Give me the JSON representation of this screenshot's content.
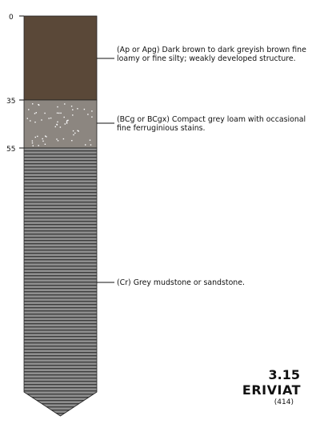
{
  "depth_labels": {
    "top": "0",
    "ap_bottom": "35",
    "bcg_bottom": "55"
  },
  "horizons": {
    "ap": {
      "description": "(Ap or Apg) Dark brown to dark greyish brown fine loamy or fine silty; weakly developed structure.",
      "color": "#5a4838"
    },
    "bcg": {
      "description": "(BCg or BCgx) Compact grey loam with occasional fine ferruginious stains.",
      "color": "#8c8680"
    },
    "cr": {
      "description": "(Cr) Grey mudstone or sandstone.",
      "color": "#8e8e8e",
      "stripe_color": "#3a3a3a"
    }
  },
  "profile": {
    "number": "3.15",
    "name": "ERIVIAT",
    "code": "(414)"
  }
}
